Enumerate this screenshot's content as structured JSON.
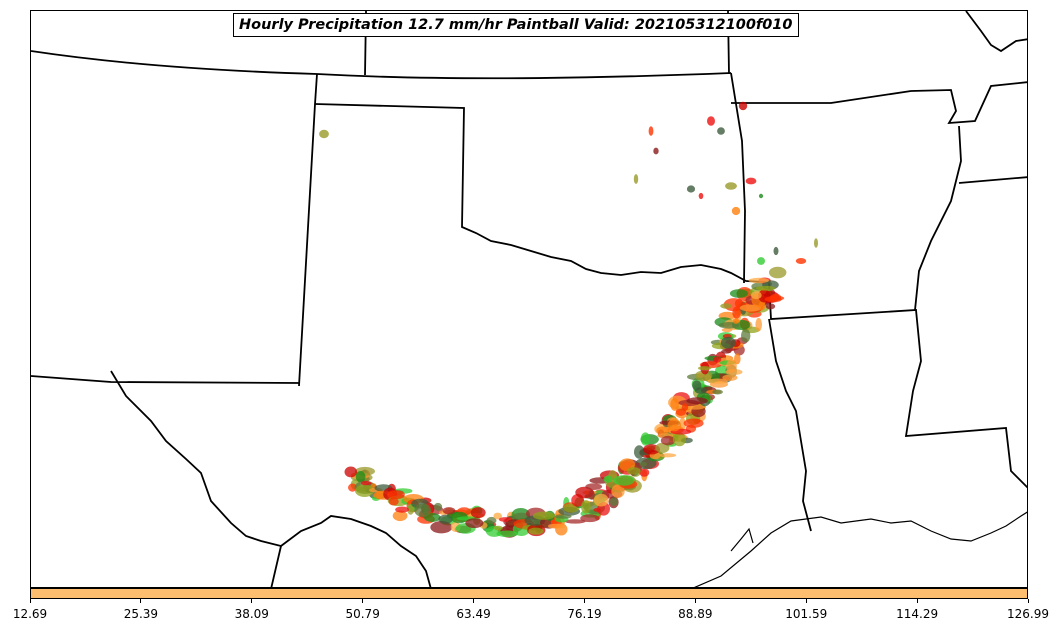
{
  "title": "Hourly Precipitation 12.7 mm/hr Paintball Valid: 202105312100f010",
  "colorbar": {
    "color": "#fdbf6f",
    "ticks": [
      "12.69",
      "25.39",
      "38.09",
      "50.79",
      "63.49",
      "76.19",
      "88.89",
      "101.59",
      "114.29",
      "126.99"
    ]
  },
  "member_colors": [
    "#33cc33",
    "#1a8c1a",
    "#8fa31a",
    "#9a9a2a",
    "#ff9933",
    "#ff7f0e",
    "#ffaa44",
    "#ff3300",
    "#ee1111",
    "#cc0000",
    "#8b1a1a",
    "#a52a2a",
    "#5c7a3a",
    "#3d5c3d"
  ],
  "map_elements": [
    "state-boundaries",
    "coastline",
    "precipitation-paintball"
  ]
}
